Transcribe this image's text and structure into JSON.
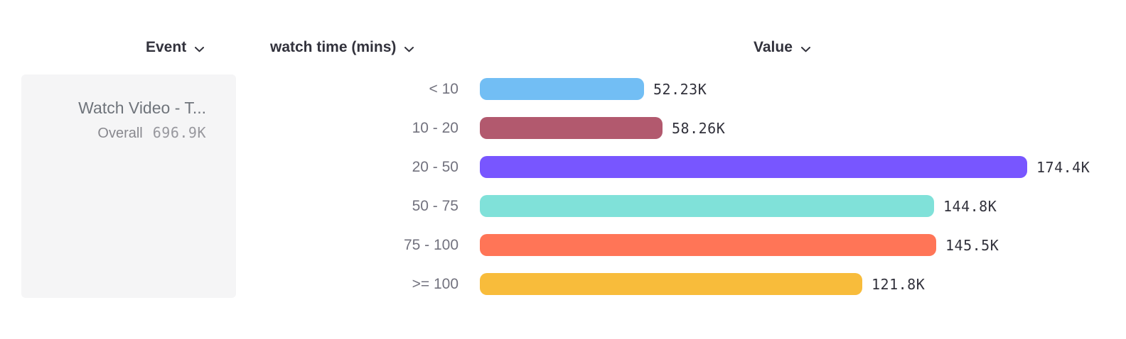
{
  "header": {
    "columns": [
      {
        "label": "Event"
      },
      {
        "label": "watch time (mins)"
      },
      {
        "label": "Value"
      }
    ]
  },
  "event_card": {
    "title": "Watch Video - T...",
    "overall_label": "Overall",
    "overall_value": "696.9K"
  },
  "chart_data": {
    "type": "bar",
    "orientation": "horizontal",
    "title": "",
    "xlabel": "Value",
    "ylabel": "watch time (mins)",
    "categories": [
      "< 10",
      "10 - 20",
      "20 - 50",
      "50 - 75",
      "75 - 100",
      ">= 100"
    ],
    "values": [
      52230,
      58260,
      174400,
      144800,
      145500,
      121800
    ],
    "value_labels": [
      "52.23K",
      "58.26K",
      "174.4K",
      "144.8K",
      "145.5K",
      "121.8K"
    ],
    "bar_colors": [
      "#72BEF4",
      "#B2596E",
      "#7856FF",
      "#80E1D9",
      "#FF7557",
      "#F8BC3B"
    ],
    "series_name": "Watch Video - T...",
    "overall_total": "696.9K",
    "xlim": [
      0,
      174400
    ],
    "grid": false,
    "legend_position": "left"
  },
  "colors": {
    "header_text": "#32323C",
    "category_label": "#72727E",
    "value_label": "#32323C",
    "card_bg": "#F5F5F6",
    "card_title": "#6F747B",
    "card_sub_label": "#88888E",
    "card_sub_value": "#98989E"
  }
}
